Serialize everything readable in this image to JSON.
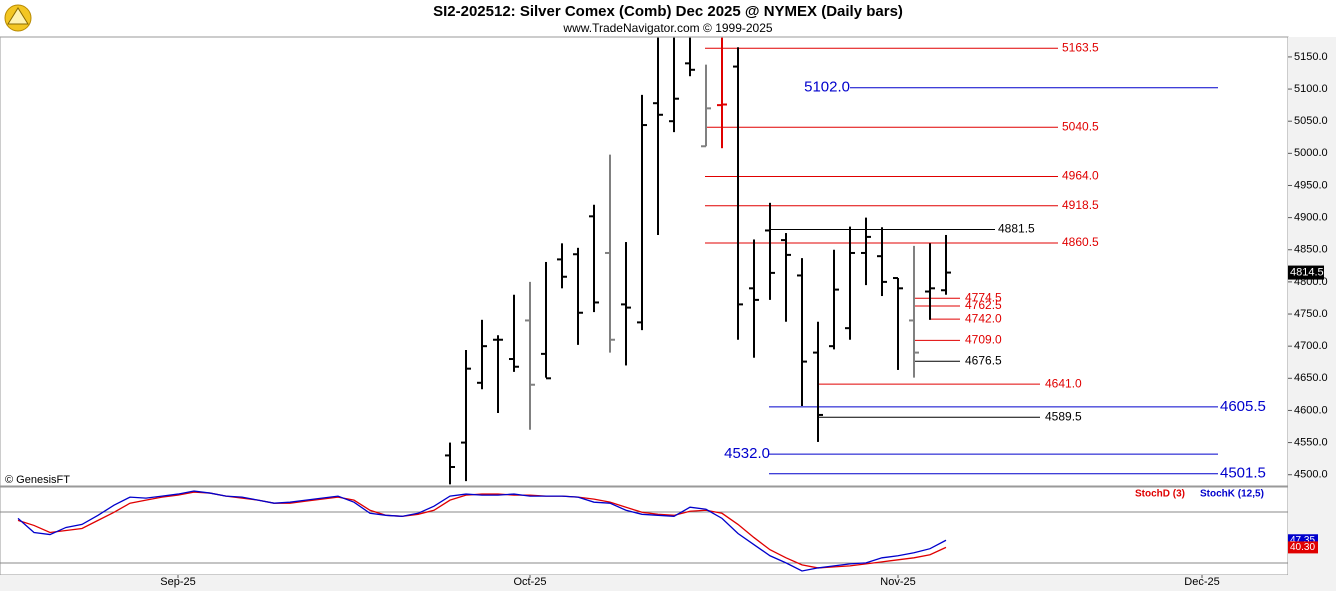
{
  "header": {
    "title": "SI2-202512:  Silver Comex (Comb) Dec 2025 @ NYMEX  (Daily bars)",
    "subtitle": "www.TradeNavigator.com © 1999-2025"
  },
  "watermark": "© GenesisFT",
  "chart_data": [
    {
      "type": "ohlc",
      "categories": [
        null,
        null,
        null,
        null,
        null,
        null,
        null,
        null,
        null,
        null,
        null,
        "Sep-25",
        null,
        null,
        null,
        null,
        null,
        null,
        null,
        null,
        null,
        null,
        null,
        null,
        null,
        null,
        null,
        null,
        null,
        null,
        null,
        null,
        null,
        "Oct-25",
        null,
        null,
        null,
        null,
        null,
        null,
        null,
        null,
        null,
        null,
        null,
        null,
        null,
        null,
        null,
        null,
        null,
        null,
        null,
        null,
        null,
        null,
        "Nov-25",
        null,
        null,
        null,
        null,
        null,
        null,
        null,
        null,
        null,
        null,
        null,
        null,
        null,
        null,
        null,
        null,
        null,
        null,
        "Dec-25",
        null,
        null,
        null,
        null
      ],
      "open": [
        null,
        null,
        null,
        null,
        null,
        null,
        null,
        null,
        null,
        null,
        null,
        null,
        null,
        null,
        null,
        null,
        null,
        null,
        null,
        null,
        null,
        null,
        null,
        null,
        null,
        null,
        null,
        null,
        4530,
        4550,
        4643,
        4710,
        4680,
        4740,
        4688,
        4835,
        4843,
        4902,
        4845,
        4765,
        4737,
        5078,
        5050,
        5140,
        5011,
        5075,
        5135,
        4790,
        4880,
        4865,
        4810,
        4690,
        4700,
        4728,
        4845,
        4840,
        4806,
        4740,
        4785,
        4787,
        null,
        null,
        null,
        null,
        null,
        null,
        null,
        null,
        null,
        null,
        null,
        null,
        null,
        null,
        null,
        null,
        null,
        null,
        null,
        null
      ],
      "high": [
        null,
        null,
        null,
        null,
        null,
        null,
        null,
        null,
        null,
        null,
        null,
        null,
        null,
        null,
        null,
        null,
        null,
        null,
        null,
        null,
        null,
        null,
        null,
        null,
        null,
        null,
        null,
        null,
        4550,
        4694,
        4741,
        4717,
        4780,
        4800,
        4831,
        4860,
        4853,
        4920,
        4998,
        4862,
        5091,
        5180,
        5180,
        5180,
        5138,
        5180,
        5165,
        4866,
        4923,
        4876,
        4837,
        4738,
        4850,
        4886,
        4900,
        4885,
        4806,
        4856,
        4860,
        4873,
        null,
        null,
        null,
        null,
        null,
        null,
        null,
        null,
        null,
        null,
        null,
        null,
        null,
        null,
        null,
        null,
        null,
        null,
        null,
        null
      ],
      "low": [
        null,
        null,
        null,
        null,
        null,
        null,
        null,
        null,
        null,
        null,
        null,
        null,
        null,
        null,
        null,
        null,
        null,
        null,
        null,
        null,
        null,
        null,
        null,
        null,
        null,
        null,
        null,
        null,
        4485,
        4490,
        4633,
        4596,
        4660,
        4570,
        4651,
        4790,
        4702,
        4753,
        4690,
        4670,
        4725,
        4873,
        5033,
        5120,
        5011,
        5008,
        4710,
        4682,
        4772,
        4738,
        4607,
        4551,
        4695,
        4710,
        4795,
        4778,
        4663,
        4651,
        4741,
        4780,
        null,
        null,
        null,
        null,
        null,
        null,
        null,
        null,
        null,
        null,
        null,
        null,
        null,
        null,
        null,
        null,
        null,
        null,
        null,
        null
      ],
      "close": [
        null,
        null,
        null,
        null,
        null,
        null,
        null,
        null,
        null,
        null,
        null,
        null,
        null,
        null,
        null,
        null,
        null,
        null,
        null,
        null,
        null,
        null,
        null,
        null,
        null,
        null,
        null,
        null,
        4512,
        4665,
        4700,
        4710,
        4668,
        4640,
        4650,
        4808,
        4752,
        4768,
        4710,
        4760,
        5044,
        5060,
        5085,
        5130,
        5070,
        5076,
        4765,
        4772,
        4814,
        4842,
        4676,
        4593,
        4788,
        4845,
        4870,
        4800,
        4790,
        4690,
        4790,
        4814.5,
        null,
        null,
        null,
        null,
        null,
        null,
        null,
        null,
        null,
        null,
        null,
        null,
        null,
        null,
        null,
        null,
        null,
        null,
        null,
        null
      ],
      "bar_colors": [
        null,
        null,
        null,
        null,
        null,
        null,
        null,
        null,
        null,
        null,
        null,
        null,
        null,
        null,
        null,
        null,
        null,
        null,
        null,
        null,
        null,
        null,
        null,
        null,
        null,
        null,
        null,
        null,
        "#000000",
        "#000000",
        "#000000",
        "#000000",
        "#000000",
        "#808080",
        "#000000",
        "#000000",
        "#000000",
        "#000000",
        "#808080",
        "#000000",
        "#000000",
        "#000000",
        "#000000",
        "#000000",
        "#808080",
        "#e00000",
        "#000000",
        "#000000",
        "#000000",
        "#000000",
        "#000000",
        "#000000",
        "#000000",
        "#000000",
        "#000000",
        "#000000",
        "#000000",
        "#808080",
        "#000000",
        "#000000",
        null,
        null,
        null,
        null,
        null,
        null,
        null,
        null,
        null,
        null,
        null,
        null,
        null,
        null,
        null,
        null,
        null,
        null,
        null,
        null
      ],
      "ylim": [
        4484,
        5181
      ],
      "yticks": [
        {
          "value": 4500,
          "label": "4500.0"
        },
        {
          "value": 4550,
          "label": "4550.0"
        },
        {
          "value": 4600,
          "label": "4600.0"
        },
        {
          "value": 4650,
          "label": "4650.0"
        },
        {
          "value": 4700,
          "label": "4700.0"
        },
        {
          "value": 4750,
          "label": "4750.0"
        },
        {
          "value": 4800,
          "label": "4800.0"
        },
        {
          "value": 4850,
          "label": "4850.0"
        },
        {
          "value": 4900,
          "label": "4900.0"
        },
        {
          "value": 4950,
          "label": "4950.0"
        },
        {
          "value": 5000,
          "label": "5000.0"
        },
        {
          "value": 5050,
          "label": "5050.0"
        },
        {
          "value": 5100,
          "label": "5100.0"
        },
        {
          "value": 5150,
          "label": "5150.0"
        }
      ],
      "levels": [
        {
          "value": 5163.5,
          "label": "5163.5",
          "color": "#e00000"
        },
        {
          "value": 5102,
          "label": "5102.0",
          "color": "#0000cc"
        },
        {
          "value": 5040.5,
          "label": "5040.5",
          "color": "#e00000"
        },
        {
          "value": 4964,
          "label": "4964.0",
          "color": "#e00000"
        },
        {
          "value": 4918.5,
          "label": "4918.5",
          "color": "#e00000"
        },
        {
          "value": 4881.5,
          "label": "4881.5",
          "color": "#000000"
        },
        {
          "value": 4860.5,
          "label": "4860.5",
          "color": "#e00000"
        },
        {
          "value": 4774.5,
          "label": "4774.5",
          "color": "#e00000"
        },
        {
          "value": 4762.5,
          "label": "4762.5",
          "color": "#e00000"
        },
        {
          "value": 4742,
          "label": "4742.0",
          "color": "#e00000"
        },
        {
          "value": 4709,
          "label": "4709.0",
          "color": "#e00000"
        },
        {
          "value": 4676.5,
          "label": "4676.5",
          "color": "#000000"
        },
        {
          "value": 4641,
          "label": "4641.0",
          "color": "#e00000"
        },
        {
          "value": 4605.5,
          "label": "4605.5",
          "color": "#0000cc"
        },
        {
          "value": 4589.5,
          "label": "4589.5",
          "color": "#000000"
        },
        {
          "value": 4532,
          "label": "4532.0",
          "color": "#0000cc"
        },
        {
          "value": 4501.5,
          "label": "4501.5",
          "color": "#0000cc"
        }
      ]
    },
    {
      "type": "line",
      "ylim": [
        13,
        100
      ],
      "series": [
        {
          "name": "StochD (3)",
          "color": "#e00000",
          "last_label": "40.30",
          "values": [
            null,
            67,
            62,
            55,
            57,
            59,
            67,
            75,
            84,
            87,
            90,
            92,
            95,
            94,
            91,
            89,
            87,
            84,
            84,
            86,
            88,
            90,
            87,
            77,
            72,
            71,
            73,
            77,
            87,
            92,
            93,
            93,
            92,
            92,
            91,
            91,
            90,
            88,
            85,
            80,
            75,
            73,
            72,
            76,
            77,
            74,
            63,
            50,
            38,
            30,
            23,
            20,
            21,
            22,
            24,
            26,
            28,
            30,
            33,
            40.3,
            null,
            null,
            null,
            null,
            null,
            null,
            null,
            null,
            null,
            null,
            null,
            null,
            null,
            null,
            null,
            null,
            null,
            null,
            null,
            null
          ]
        },
        {
          "name": "StochK (12,5)",
          "color": "#0000cc",
          "last_label": "47.35",
          "values": [
            null,
            69,
            55,
            53,
            60,
            63,
            72,
            82,
            90,
            89,
            91,
            93,
            96,
            94,
            91,
            90,
            87,
            84,
            85,
            87,
            89,
            91,
            85,
            74,
            72,
            71,
            74,
            81,
            91,
            93,
            92,
            92,
            93,
            91,
            91,
            91,
            90,
            85,
            84,
            77,
            73,
            72,
            71,
            80,
            78,
            69,
            54,
            43,
            32,
            25,
            17,
            20,
            22,
            24,
            25,
            30,
            32,
            35,
            39,
            47.35,
            null,
            null,
            null,
            null,
            null,
            null,
            null,
            null,
            null,
            null,
            null,
            null,
            null,
            null,
            null,
            null,
            null,
            null,
            null,
            null
          ]
        }
      ]
    }
  ]
}
